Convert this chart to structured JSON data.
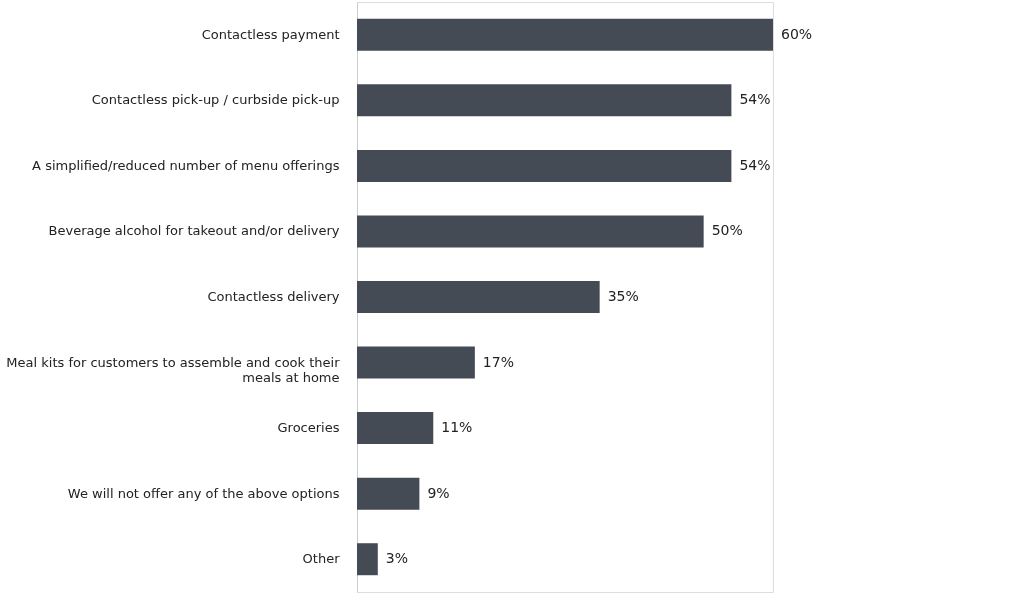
{
  "chart_data": {
    "type": "bar",
    "orientation": "horizontal",
    "categories": [
      "Contactless payment",
      "Contactless pick-up / curbside pick-up",
      "A simplified/reduced number of menu offerings",
      "Beverage alcohol for takeout and/or delivery",
      "Contactless delivery",
      "Meal kits for customers to assemble and cook their meals at home",
      "Groceries",
      "We will not offer any of the above options",
      "Other"
    ],
    "values": [
      60,
      54,
      54,
      50,
      35,
      17,
      11,
      9,
      3
    ],
    "value_labels": [
      "60%",
      "54%",
      "54%",
      "50%",
      "35%",
      "17%",
      "11%",
      "9%",
      "3%"
    ],
    "color": "#454b55",
    "grid": false
  }
}
